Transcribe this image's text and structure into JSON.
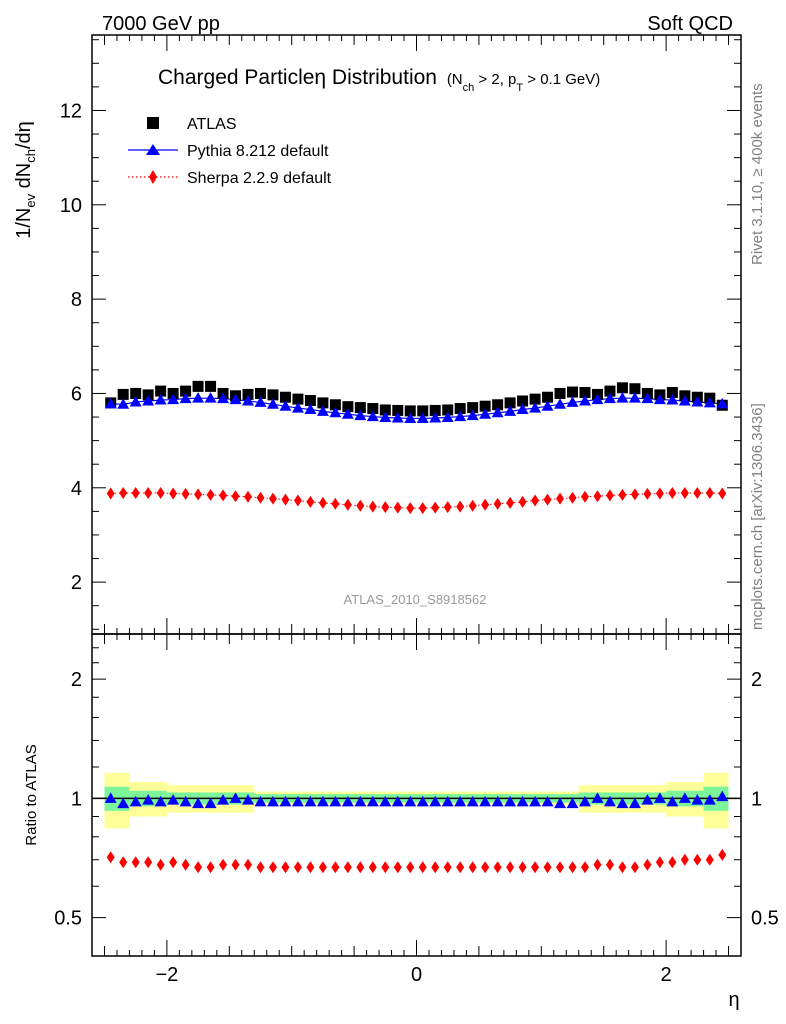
{
  "header": {
    "left": "7000 GeV pp",
    "right": "Soft QCD"
  },
  "side_labels": {
    "rivet": "Rivet 3.1.10, ≥ 400k events",
    "mcplots": "mcplots.cern.ch [arXiv:1306.3436]"
  },
  "chart_data": [
    {
      "type": "scatter",
      "panel": "main",
      "title": "Charged Particleη Distribution",
      "title_condition": {
        "part1": "(N",
        "sub1": "ch",
        "part2": " > 2, p",
        "sub2": "T",
        "part3": " > 0.1 GeV)"
      },
      "ylabel": {
        "p1": "1/N",
        "s1": "ev",
        "p2": " dN",
        "s2": "ch",
        "p3": "/dη"
      },
      "xlabel": "η",
      "xlim": [
        -2.6,
        2.6
      ],
      "ylim": [
        0.9,
        13.6
      ],
      "yticks": [
        2,
        4,
        6,
        8,
        10,
        12
      ],
      "ytick_labels": [
        "2",
        "4",
        "6",
        "8",
        "10",
        "12"
      ],
      "watermark": "ATLAS_2010_S8918562",
      "legend_position": "top-left",
      "x": [
        -2.45,
        -2.35,
        -2.25,
        -2.15,
        -2.05,
        -1.95,
        -1.85,
        -1.75,
        -1.65,
        -1.55,
        -1.45,
        -1.35,
        -1.25,
        -1.15,
        -1.05,
        -0.95,
        -0.85,
        -0.75,
        -0.65,
        -0.55,
        -0.45,
        -0.35,
        -0.25,
        -0.15,
        -0.05,
        0.05,
        0.15,
        0.25,
        0.35,
        0.45,
        0.55,
        0.65,
        0.75,
        0.85,
        0.95,
        1.05,
        1.15,
        1.25,
        1.35,
        1.45,
        1.55,
        1.65,
        1.75,
        1.85,
        1.95,
        2.05,
        2.15,
        2.25,
        2.35,
        2.45
      ],
      "series": [
        {
          "name": "ATLAS",
          "marker": "square",
          "color": "#000000",
          "values": [
            5.8,
            5.98,
            6.0,
            5.97,
            6.05,
            6.0,
            6.05,
            6.15,
            6.15,
            6.0,
            5.95,
            5.98,
            6.0,
            5.97,
            5.92,
            5.88,
            5.85,
            5.8,
            5.76,
            5.72,
            5.7,
            5.68,
            5.65,
            5.64,
            5.63,
            5.63,
            5.64,
            5.65,
            5.68,
            5.7,
            5.73,
            5.76,
            5.8,
            5.84,
            5.88,
            5.92,
            6.0,
            6.03,
            6.02,
            5.98,
            6.05,
            6.12,
            6.1,
            6.0,
            5.97,
            6.02,
            5.95,
            5.92,
            5.9,
            5.75
          ]
        },
        {
          "name": "Pythia 8.212 default",
          "marker": "triangle",
          "line": "solid",
          "color": "#0000ff",
          "values": [
            5.78,
            5.77,
            5.82,
            5.84,
            5.86,
            5.87,
            5.89,
            5.9,
            5.9,
            5.89,
            5.87,
            5.84,
            5.81,
            5.77,
            5.73,
            5.69,
            5.66,
            5.62,
            5.59,
            5.56,
            5.53,
            5.51,
            5.49,
            5.48,
            5.47,
            5.47,
            5.48,
            5.49,
            5.51,
            5.53,
            5.56,
            5.59,
            5.62,
            5.66,
            5.69,
            5.73,
            5.77,
            5.81,
            5.84,
            5.87,
            5.89,
            5.9,
            5.9,
            5.89,
            5.87,
            5.86,
            5.84,
            5.82,
            5.8,
            5.78
          ]
        },
        {
          "name": "Sherpa 2.2.9 default",
          "marker": "diamond",
          "line": "dotted",
          "color": "#ff0000",
          "values": [
            3.88,
            3.89,
            3.89,
            3.89,
            3.89,
            3.88,
            3.87,
            3.86,
            3.85,
            3.84,
            3.82,
            3.81,
            3.79,
            3.77,
            3.75,
            3.73,
            3.7,
            3.68,
            3.66,
            3.64,
            3.62,
            3.6,
            3.59,
            3.58,
            3.57,
            3.57,
            3.58,
            3.59,
            3.6,
            3.62,
            3.64,
            3.66,
            3.68,
            3.7,
            3.73,
            3.75,
            3.77,
            3.79,
            3.81,
            3.82,
            3.84,
            3.85,
            3.86,
            3.87,
            3.88,
            3.89,
            3.89,
            3.89,
            3.89,
            3.88
          ]
        }
      ]
    },
    {
      "type": "scatter",
      "panel": "ratio",
      "ylabel": "Ratio to ATLAS",
      "xlabel": "η",
      "xlim": [
        -2.6,
        2.6
      ],
      "ylim": [
        0.4,
        2.6
      ],
      "y_scale": "log",
      "yticks": [
        0.5,
        1,
        2
      ],
      "ytick_labels": [
        "0.5",
        "1",
        "2"
      ],
      "xticks": [
        -2,
        0,
        2
      ],
      "xtick_labels": [
        "−2",
        "0",
        "2"
      ],
      "reference_line": 1,
      "uncertainty_bands": {
        "edges": [
          -2.5,
          -2.3,
          -2.0,
          -1.3,
          1.3,
          2.0,
          2.3,
          2.5
        ],
        "inner_color": "#7cf59a",
        "inner_half_width": [
          0.07,
          0.045,
          0.035,
          0.025,
          0.035,
          0.045,
          0.07
        ],
        "outer_color": "#ffff99",
        "outer_half_width": [
          0.16,
          0.1,
          0.08,
          0.04,
          0.08,
          0.1,
          0.16
        ]
      },
      "series": [
        {
          "name": "Pythia 8.212 default",
          "marker": "triangle",
          "color": "#0000ff",
          "values": [
            1.0,
            0.97,
            0.98,
            0.99,
            0.98,
            0.99,
            0.98,
            0.97,
            0.97,
            0.99,
            1.0,
            0.99,
            0.98,
            0.98,
            0.98,
            0.98,
            0.98,
            0.98,
            0.98,
            0.98,
            0.98,
            0.98,
            0.98,
            0.98,
            0.98,
            0.98,
            0.98,
            0.98,
            0.98,
            0.98,
            0.98,
            0.98,
            0.98,
            0.98,
            0.98,
            0.98,
            0.97,
            0.97,
            0.98,
            1.0,
            0.98,
            0.97,
            0.97,
            0.99,
            1.0,
            0.98,
            1.0,
            0.99,
            0.99,
            1.01
          ]
        },
        {
          "name": "Sherpa 2.2.9 default",
          "marker": "diamond",
          "color": "#ff0000",
          "values": [
            0.71,
            0.69,
            0.69,
            0.69,
            0.68,
            0.69,
            0.68,
            0.67,
            0.67,
            0.68,
            0.68,
            0.68,
            0.67,
            0.67,
            0.67,
            0.67,
            0.67,
            0.67,
            0.67,
            0.67,
            0.67,
            0.67,
            0.67,
            0.67,
            0.67,
            0.67,
            0.67,
            0.67,
            0.67,
            0.67,
            0.67,
            0.67,
            0.67,
            0.67,
            0.67,
            0.67,
            0.67,
            0.67,
            0.67,
            0.68,
            0.68,
            0.67,
            0.67,
            0.68,
            0.69,
            0.69,
            0.7,
            0.7,
            0.7,
            0.72
          ]
        }
      ]
    }
  ]
}
